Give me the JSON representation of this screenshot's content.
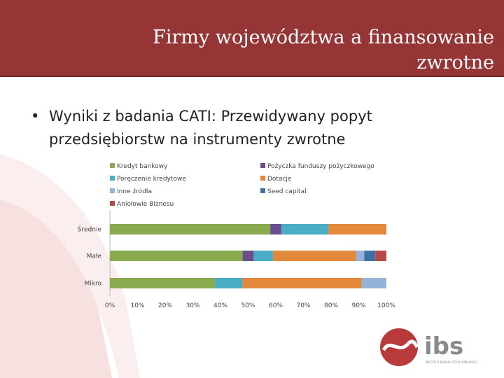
{
  "slide": {
    "title": "Firmy województwa a finansowanie zwrotne",
    "bullet": "Wyniki z badania CATI: Przewidywany popyt przedsiębiorstw na instrumenty zwrotne",
    "colors": {
      "title_bar": "#963535",
      "swoosh": "#f6dede"
    }
  },
  "logo": {
    "text": "ibs",
    "tagline": "INSTYTUT BADAŃ STRUKTURALNYCH"
  },
  "chart_data": {
    "type": "bar",
    "orientation": "horizontal",
    "stacked": true,
    "categories": [
      "Średnie",
      "Małe",
      "Mikro"
    ],
    "xlim": [
      0,
      100
    ],
    "x_ticks": [
      "0%",
      "10%",
      "20%",
      "30%",
      "40%",
      "50%",
      "60%",
      "70%",
      "80%",
      "90%",
      "100%"
    ],
    "legend_position": "top",
    "series": [
      {
        "name": "Kredyt bankowy",
        "color": "#8aaa4e",
        "values": [
          58,
          48,
          38
        ]
      },
      {
        "name": "Pożyczka funduszy pożyczkowego",
        "color": "#6b4f8c",
        "values": [
          4,
          4,
          0
        ]
      },
      {
        "name": "Poręczenie kredytowe",
        "color": "#4bacc6",
        "values": [
          17,
          7,
          10
        ]
      },
      {
        "name": "Dotacje",
        "color": "#e3893c",
        "values": [
          21,
          30,
          43
        ]
      },
      {
        "name": "Inne źródła",
        "color": "#95b3d7",
        "values": [
          0,
          3,
          9
        ]
      },
      {
        "name": "Seed capital",
        "color": "#3e6fa5",
        "values": [
          0,
          4,
          0
        ]
      },
      {
        "name": "Aniołowie Biznesu",
        "color": "#b64a48",
        "values": [
          0,
          4,
          0
        ]
      }
    ]
  }
}
